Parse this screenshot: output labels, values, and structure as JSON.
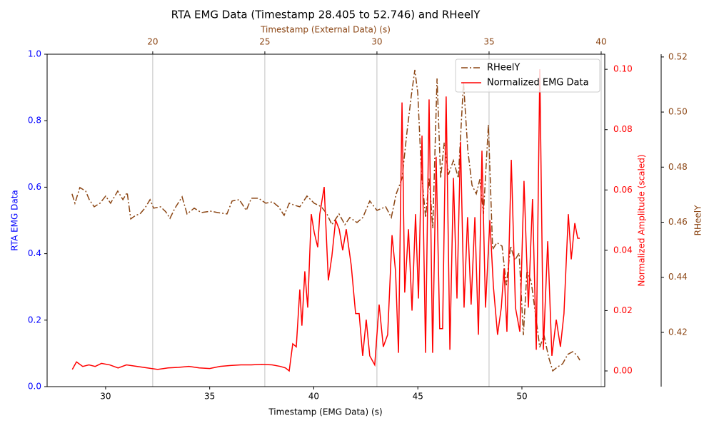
{
  "chart_data": {
    "type": "line",
    "title": "RTA EMG Data (Timestamp 28.405 to 52.746) and RHeelY",
    "xlabel": "Timestamp (EMG Data) (s)",
    "x2label": "Timestamp (External Data) (s)",
    "ylabel": "RTA EMG Data",
    "y2label": "Normalized Amplitude (scaled)",
    "y3label": "RHeelY",
    "xlim": [
      27.19,
      53.98
    ],
    "xticks": [
      30,
      35,
      40,
      45,
      50
    ],
    "x2lim": [
      15.29,
      40.16
    ],
    "x2ticks": [
      20,
      25,
      30,
      35,
      40
    ],
    "ylim": [
      0,
      1
    ],
    "yticks": [
      {
        "value": 0,
        "label": "0.0"
      },
      0.2,
      0.4,
      0.6,
      0.8,
      {
        "value": 1,
        "label": "1.0"
      }
    ],
    "y2lim": [
      -0.0052,
      0.105
    ],
    "y2ticks": [
      {
        "value": 0,
        "label": "0.00"
      },
      {
        "value": 0.02,
        "label": "0.02"
      },
      {
        "value": 0.04,
        "label": "0.04"
      },
      {
        "value": 0.06,
        "label": "0.06"
      },
      {
        "value": 0.08,
        "label": "0.08"
      },
      {
        "value": 0.1,
        "label": "0.10"
      }
    ],
    "y3lim": [
      0.4003,
      0.521
    ],
    "y3ticks": [
      0.42,
      0.44,
      0.46,
      0.48,
      {
        "value": 0.5,
        "label": "0.50"
      },
      0.52
    ],
    "ylabel_color": "#0000ff",
    "y2label_color": "#ff0000",
    "y3label_color": "#8b4513",
    "x2label_color": "#8b4513",
    "grid_axis": "x2",
    "legend": "upper right",
    "series": [
      {
        "name": "RHeelY",
        "color": "#8b4513",
        "style": "dashdot",
        "xaxis": "x2",
        "axis": "y3",
        "x": [
          16.4,
          16.53,
          16.75,
          17.01,
          17.17,
          17.39,
          17.65,
          17.9,
          18.12,
          18.44,
          18.67,
          18.86,
          19.02,
          19.24,
          19.43,
          19.65,
          19.88,
          20.04,
          20.35,
          20.58,
          20.77,
          20.99,
          21.31,
          21.53,
          21.85,
          22.17,
          22.58,
          22.9,
          23.31,
          23.54,
          23.86,
          24.17,
          24.4,
          24.72,
          25.04,
          25.35,
          25.61,
          25.86,
          26.09,
          26.34,
          26.56,
          26.88,
          27.2,
          27.52,
          27.77,
          27.99,
          28.31,
          28.57,
          28.79,
          29.11,
          29.37,
          29.68,
          30.0,
          30.39,
          30.64,
          30.86,
          31.12,
          31.34,
          31.53,
          31.69,
          31.82,
          31.98,
          32.17,
          32.33,
          32.49,
          32.68,
          32.84,
          33.0,
          33.19,
          33.41,
          33.63,
          33.86,
          34.05,
          34.24,
          34.43,
          34.59,
          34.75,
          34.97,
          35.16,
          35.35,
          35.58,
          35.77,
          35.96,
          36.15,
          36.34,
          36.53,
          36.69,
          36.88,
          37.07,
          37.26,
          37.45,
          37.65,
          37.84,
          38.03,
          38.28,
          38.51,
          38.73,
          38.92,
          39.05
        ],
        "values": [
          0.4703,
          0.4669,
          0.4726,
          0.4713,
          0.4682,
          0.4656,
          0.4669,
          0.4695,
          0.4669,
          0.4713,
          0.4682,
          0.4708,
          0.4612,
          0.4625,
          0.463,
          0.4651,
          0.4682,
          0.4651,
          0.4656,
          0.4638,
          0.4614,
          0.4651,
          0.4692,
          0.463,
          0.4651,
          0.4635,
          0.464,
          0.4635,
          0.463,
          0.4677,
          0.4682,
          0.4643,
          0.4687,
          0.4687,
          0.4669,
          0.4674,
          0.4656,
          0.4625,
          0.4669,
          0.4661,
          0.4656,
          0.4695,
          0.4669,
          0.4656,
          0.463,
          0.4591,
          0.463,
          0.4591,
          0.4617,
          0.4599,
          0.4617,
          0.4677,
          0.4643,
          0.4656,
          0.4617,
          0.4703,
          0.476,
          0.4928,
          0.5058,
          0.5153,
          0.507,
          0.4785,
          0.4617,
          0.476,
          0.4578,
          0.5122,
          0.476,
          0.4889,
          0.4773,
          0.4824,
          0.476,
          0.5109,
          0.4863,
          0.4734,
          0.4703,
          0.4756,
          0.463,
          0.4954,
          0.4501,
          0.4526,
          0.4513,
          0.4371,
          0.4513,
          0.4462,
          0.4488,
          0.419,
          0.4423,
          0.4384,
          0.4267,
          0.4146,
          0.419,
          0.4112,
          0.406,
          0.4073,
          0.4086,
          0.412,
          0.413,
          0.4117,
          0.4099
        ]
      },
      {
        "name": "Normalized EMG Data",
        "color": "#ff0000",
        "style": "solid",
        "xaxis": "x",
        "axis": "y2",
        "x": [
          28.4,
          28.6,
          28.9,
          29.2,
          29.5,
          29.8,
          30.2,
          30.6,
          31.0,
          31.5,
          32.0,
          32.5,
          33.0,
          33.5,
          34.0,
          34.5,
          35.0,
          35.5,
          36.0,
          36.5,
          37.0,
          37.5,
          38.0,
          38.4,
          38.64,
          38.82,
          38.99,
          39.16,
          39.33,
          39.43,
          39.57,
          39.71,
          39.88,
          40.02,
          40.19,
          40.29,
          40.5,
          40.7,
          40.87,
          41.05,
          41.22,
          41.39,
          41.56,
          41.8,
          42.01,
          42.18,
          42.35,
          42.52,
          42.69,
          42.93,
          43.14,
          43.34,
          43.55,
          43.76,
          43.93,
          44.07,
          44.24,
          44.37,
          44.55,
          44.72,
          44.89,
          45.03,
          45.2,
          45.37,
          45.54,
          45.71,
          45.88,
          46.05,
          46.19,
          46.36,
          46.54,
          46.71,
          46.88,
          47.05,
          47.22,
          47.39,
          47.56,
          47.74,
          47.91,
          48.08,
          48.25,
          48.46,
          48.63,
          48.83,
          49.01,
          49.14,
          49.28,
          49.49,
          49.69,
          49.9,
          50.1,
          50.31,
          50.51,
          50.69,
          50.86,
          51.03,
          51.24,
          51.44,
          51.65,
          51.85,
          52.02,
          52.23,
          52.37,
          52.54,
          52.68,
          52.78
        ],
        "values": [
          0.0005,
          0.003,
          0.0015,
          0.002,
          0.0015,
          0.0025,
          0.002,
          0.001,
          0.002,
          0.0015,
          0.001,
          0.0005,
          0.001,
          0.0012,
          0.0015,
          0.001,
          0.0008,
          0.0015,
          0.0018,
          0.002,
          0.002,
          0.0022,
          0.002,
          0.0015,
          0.001,
          0,
          0.009,
          0.008,
          0.027,
          0.015,
          0.033,
          0.021,
          0.052,
          0.046,
          0.041,
          0.052,
          0.061,
          0.03,
          0.038,
          0.05,
          0.047,
          0.04,
          0.047,
          0.035,
          0.019,
          0.019,
          0.005,
          0.017,
          0.005,
          0.002,
          0.022,
          0.008,
          0.012,
          0.045,
          0.033,
          0.006,
          0.089,
          0.026,
          0.047,
          0.02,
          0.052,
          0.024,
          0.078,
          0.006,
          0.09,
          0.006,
          0.071,
          0.014,
          0.014,
          0.091,
          0.007,
          0.064,
          0.024,
          0.076,
          0.021,
          0.051,
          0.022,
          0.051,
          0.012,
          0.073,
          0.021,
          0.05,
          0.028,
          0.012,
          0.021,
          0.034,
          0.013,
          0.07,
          0.021,
          0.013,
          0.063,
          0.021,
          0.057,
          0.007,
          0.1,
          0.007,
          0.043,
          0.005,
          0.017,
          0.008,
          0.019,
          0.052,
          0.037,
          0.049,
          0.044,
          0.044
        ]
      }
    ]
  }
}
